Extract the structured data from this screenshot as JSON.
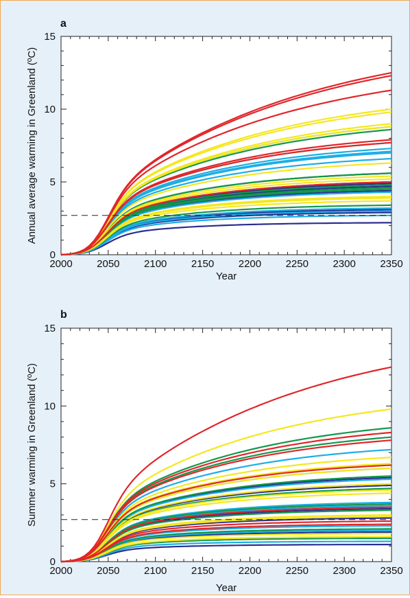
{
  "colors": {
    "background": "#e6f0f9",
    "border": "#f0a850",
    "red": "#e0262a",
    "yellow": "#f5e71f",
    "green": "#13984a",
    "cyan": "#1caee5",
    "navy": "#2b2f8f",
    "threshold": "#222222"
  },
  "chart_data": [
    {
      "panel": "a",
      "type": "line",
      "xlabel": "Year",
      "ylabel": "Annual average warming in Greenland (ºC)",
      "xlim": [
        2000,
        2350
      ],
      "ylim": [
        0,
        15
      ],
      "xticks": [
        2000,
        2050,
        2100,
        2150,
        2200,
        2250,
        2300,
        2350
      ],
      "yticks": [
        0,
        5,
        10,
        15
      ],
      "threshold": 2.7,
      "series": [
        {
          "color": "red",
          "values_2350": [
            12.5,
            12.3,
            11.3,
            7.9,
            7.7,
            5.0
          ]
        },
        {
          "color": "yellow",
          "values_2350": [
            10.0,
            9.8,
            9.0,
            8.8,
            6.3,
            5.4,
            5.2,
            4.0,
            3.9,
            3.7
          ]
        },
        {
          "color": "green",
          "values_2350": [
            8.8,
            8.6,
            7.7,
            5.6,
            4.8,
            4.6,
            4.5,
            3.4
          ]
        },
        {
          "color": "cyan",
          "values_2350": [
            7.3,
            7.1,
            7.0,
            6.6,
            4.3,
            3.2,
            3.0,
            2.7
          ]
        },
        {
          "color": "navy",
          "values_2350": [
            5.6,
            5.0,
            4.4,
            4.9,
            4.7,
            3.1,
            2.9,
            2.2
          ]
        }
      ]
    },
    {
      "panel": "b",
      "type": "line",
      "xlabel": "Year",
      "ylabel": "Summer warming in Greenland (ºC)",
      "xlim": [
        2000,
        2350
      ],
      "ylim": [
        0,
        15
      ],
      "xticks": [
        2000,
        2050,
        2100,
        2150,
        2200,
        2250,
        2300,
        2350
      ],
      "yticks": [
        0,
        5,
        10,
        15
      ],
      "threshold": 2.7,
      "series": [
        {
          "color": "red",
          "values_2350": [
            12.5,
            8.3,
            7.8,
            6.2,
            3.5,
            2.6,
            2.4
          ]
        },
        {
          "color": "yellow",
          "values_2350": [
            9.8,
            6.7,
            6.3,
            6.0,
            5.0,
            4.6,
            4.4,
            3.0,
            2.9,
            1.8,
            1.6
          ]
        },
        {
          "color": "green",
          "values_2350": [
            8.6,
            8.0,
            5.5,
            4.7,
            3.7,
            3.3,
            2.1,
            1.5
          ]
        },
        {
          "color": "cyan",
          "values_2350": [
            7.2,
            6.0,
            5.3,
            3.8,
            3.6,
            2.3,
            2.0,
            1.3
          ]
        },
        {
          "color": "navy",
          "values_2350": [
            5.4,
            4.9,
            3.4,
            2.8,
            1.9,
            1.1
          ]
        }
      ]
    }
  ]
}
